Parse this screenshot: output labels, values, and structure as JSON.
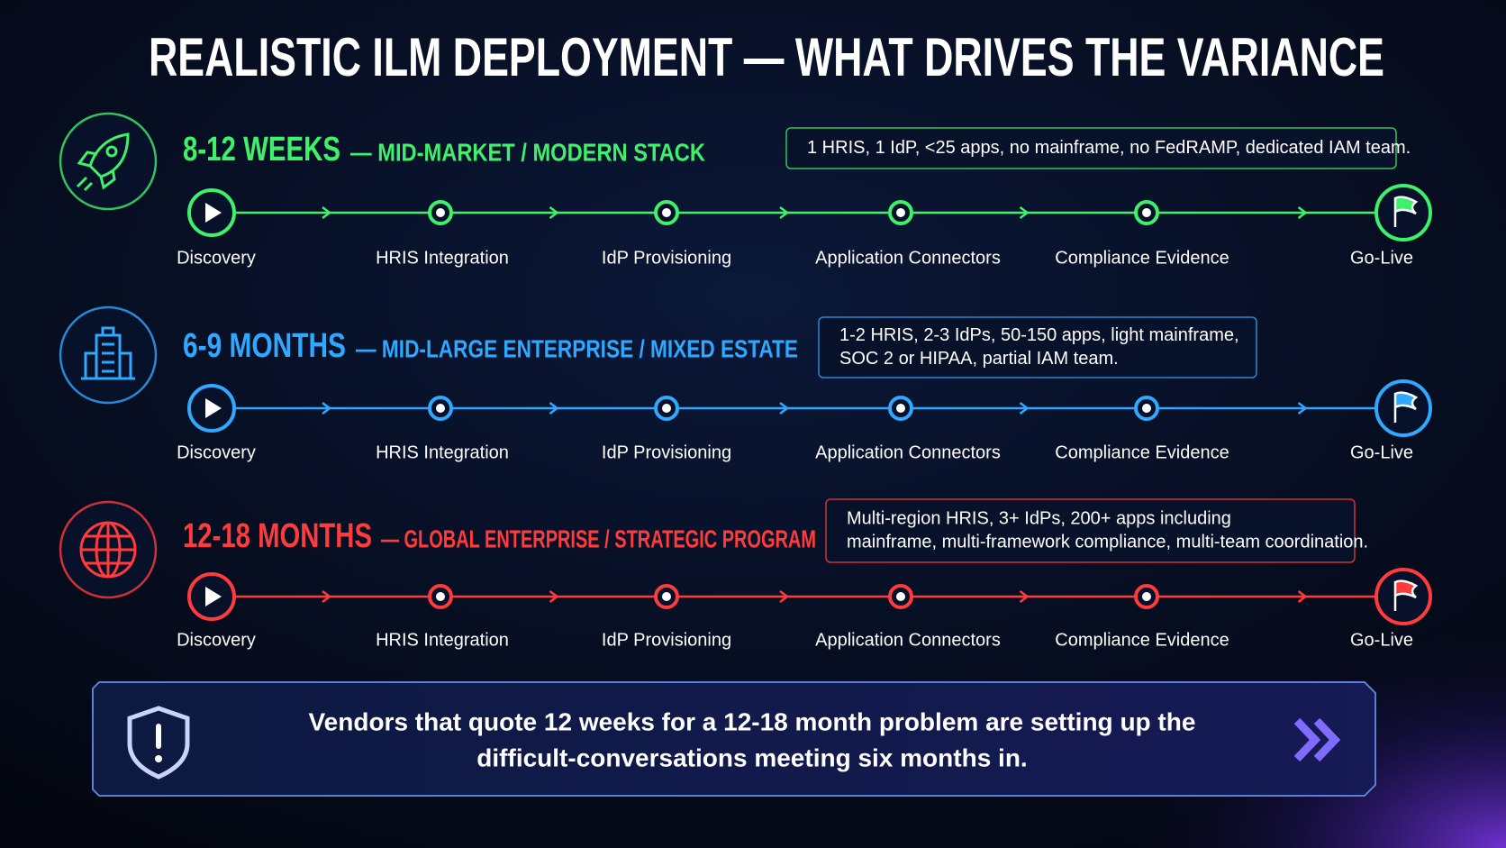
{
  "title": "REALISTIC ILM DEPLOYMENT — WHAT DRIVES THE VARIANCE",
  "tracks": [
    {
      "duration": "8-12 WEEKS",
      "label": "— MID-MARKET / MODERN STACK",
      "color": "#3ef06a",
      "note": [
        "1 HRIS, 1 IdP, <25 apps, no mainframe, no FedRAMP, dedicated IAM team."
      ],
      "stages": [
        "Discovery",
        "HRIS Integration",
        "IdP Provisioning",
        "Application Connectors",
        "Compliance Evidence",
        "Go-Live"
      ]
    },
    {
      "duration": "6-9 MONTHS",
      "label": "— MID-LARGE ENTERPRISE / MIXED ESTATE",
      "color": "#2fa8ff",
      "note": [
        "1-2 HRIS, 2-3 IdPs, 50-150 apps, light mainframe,",
        "SOC 2 or HIPAA, partial  IAM team."
      ],
      "stages": [
        "Discovery",
        "HRIS Integration",
        "IdP Provisioning",
        "Application Connectors",
        "Compliance Evidence",
        "Go-Live"
      ]
    },
    {
      "duration": "12-18 MONTHS",
      "label": "— GLOBAL ENTERPRISE / STRATEGIC PROGRAM",
      "color": "#ff3b3b",
      "note": [
        "Multi-region HRIS, 3+ IdPs, 200+ apps including",
        "mainframe, multi-framework compliance, multi-team coordination."
      ],
      "stages": [
        "Discovery",
        "HRIS Integration",
        "IdP Provisioning",
        "Application Connectors",
        "Compliance Evidence",
        "Go-Live"
      ]
    }
  ],
  "callout": [
    "Vendors that quote 12 weeks for a 12-18 month problem are setting up the",
    "difficult-conversations meeting six months in."
  ]
}
